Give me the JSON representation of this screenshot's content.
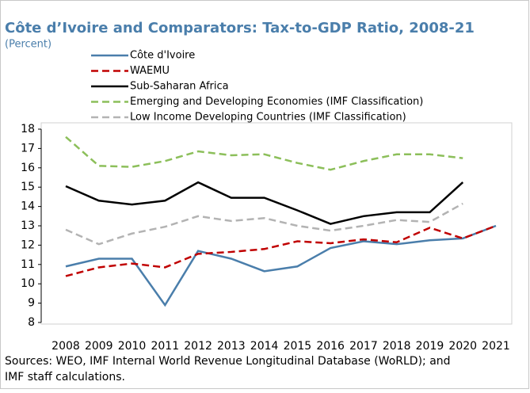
{
  "chart_data": {
    "type": "line",
    "title": "Côte d’Ivoire and Comparators: Tax-to-GDP Ratio, 2008-21",
    "subtitle": "(Percent)",
    "note": "Sources: WEO, IMF Internal World Revenue Longitudinal Database (WoRLD); and IMF staff calculations.",
    "categories": [
      "2008",
      "2009",
      "2010",
      "2011",
      "2012",
      "2013",
      "2014",
      "2015",
      "2016",
      "2017",
      "2018",
      "2019",
      "2020",
      "2021"
    ],
    "series": [
      {
        "name": "Côte d'Ivoire",
        "color": "#4a7eab",
        "style": "solid",
        "values": [
          10.9,
          11.3,
          11.3,
          8.9,
          11.7,
          11.3,
          10.65,
          10.9,
          11.85,
          12.2,
          12.05,
          12.25,
          12.35,
          13.0
        ]
      },
      {
        "name": "WAEMU",
        "color": "#c00000",
        "style": "dashed",
        "values": [
          10.4,
          10.85,
          11.05,
          10.85,
          11.55,
          11.65,
          11.8,
          12.2,
          12.1,
          12.3,
          12.15,
          12.9,
          12.35,
          13.0
        ]
      },
      {
        "name": "Sub-Saharan Africa",
        "color": "#000000",
        "style": "solid",
        "values": [
          15.05,
          14.3,
          14.1,
          14.3,
          15.25,
          14.45,
          14.45,
          13.8,
          13.1,
          13.5,
          13.7,
          13.7,
          15.25,
          null
        ]
      },
      {
        "name": "Emerging and Developing Economies (IMF Classification)",
        "color": "#8cbf5a",
        "style": "dashed",
        "values": [
          17.6,
          16.1,
          16.05,
          16.35,
          16.85,
          16.65,
          16.7,
          16.25,
          15.9,
          16.35,
          16.7,
          16.7,
          16.5,
          null
        ]
      },
      {
        "name": "Low Income Developing Countries (IMF Classification)",
        "color": "#b3b3b3",
        "style": "dashed",
        "values": [
          12.8,
          12.05,
          12.6,
          12.95,
          13.5,
          13.25,
          13.4,
          13.0,
          12.75,
          13.0,
          13.3,
          13.2,
          14.15,
          null
        ]
      }
    ],
    "ylim": [
      8,
      18
    ],
    "yticks": [
      8,
      9,
      10,
      11,
      12,
      13,
      14,
      15,
      16,
      17,
      18
    ],
    "grid": false,
    "legend": "top"
  }
}
